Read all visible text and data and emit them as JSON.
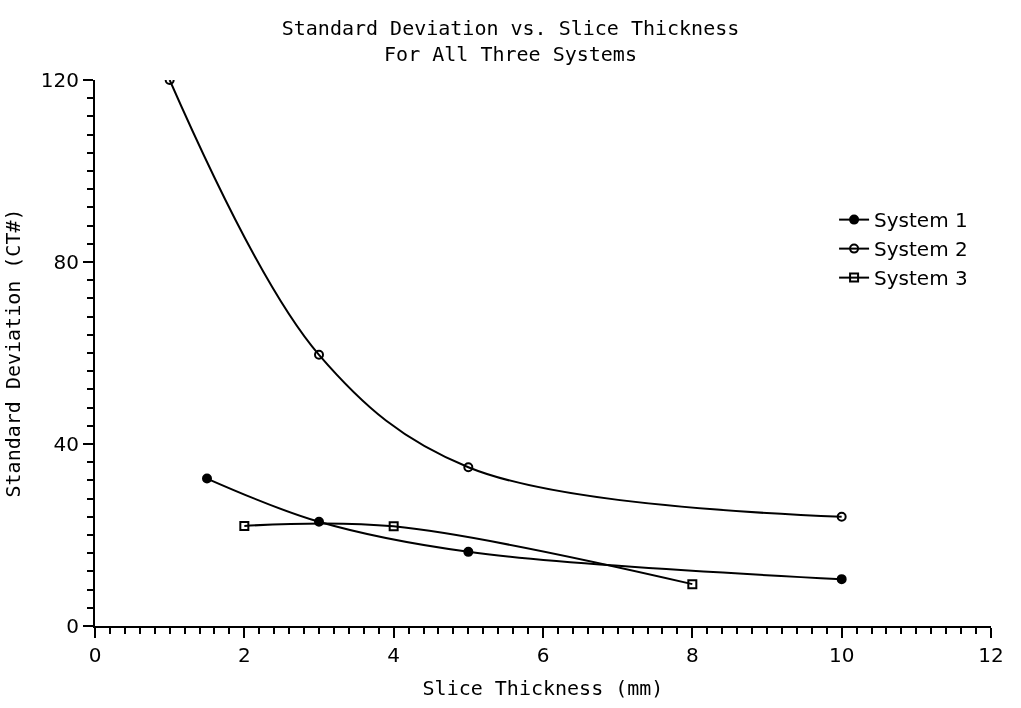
{
  "chart_data": {
    "type": "line",
    "title": "Standard Deviation vs. Slice Thickness\nFor All Three Systems",
    "xlabel": "Slice Thickness (mm)",
    "ylabel": "Standard Deviation (CT#)",
    "xlim": [
      0,
      12
    ],
    "xticks": [
      0,
      2,
      4,
      6,
      8,
      10,
      12
    ],
    "ylim": [
      0,
      120
    ],
    "yticks": [
      0,
      40,
      80,
      120
    ],
    "legend": "top right",
    "series": [
      {
        "name": "System 1",
        "color": "#000000",
        "marker": "circle",
        "x": [
          1.5,
          3,
          5,
          10
        ],
        "values": [
          32.4,
          22.9,
          16.3,
          10.3
        ]
      },
      {
        "name": "System 2",
        "color": "#000000",
        "marker": "circle-open",
        "x": [
          1,
          3,
          5,
          10
        ],
        "values": [
          120,
          59.6,
          34.9,
          24
        ]
      },
      {
        "name": "System 3",
        "color": "#000000",
        "marker": "square-open",
        "x": [
          2,
          4,
          8
        ],
        "values": [
          22,
          21.9,
          9.2
        ]
      }
    ]
  }
}
